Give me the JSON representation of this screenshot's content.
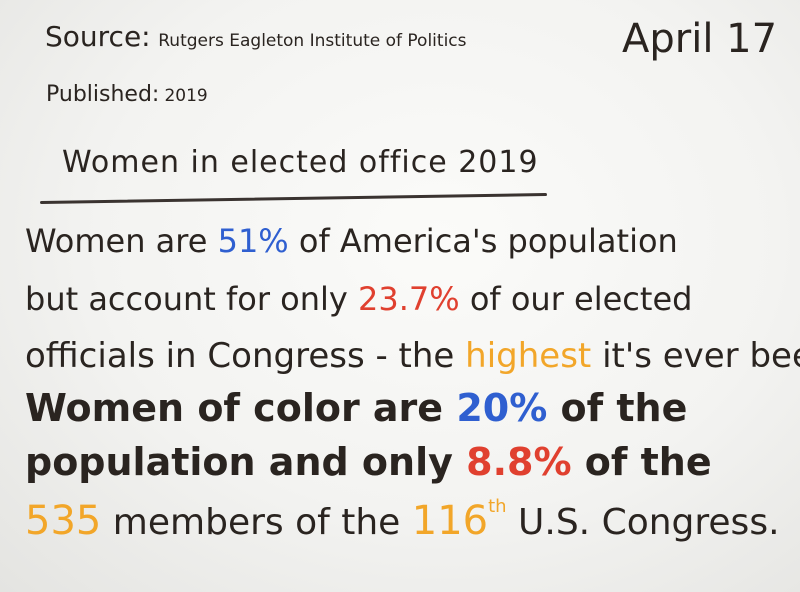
{
  "header": {
    "source_label": "Source:",
    "source_value": "Rutgers Eagleton Institute of Politics",
    "published_label": "Published:",
    "published_value": "2019",
    "date": "April 17"
  },
  "title": "Women in elected office 2019",
  "body": {
    "line1": {
      "a": "Women are ",
      "pct": "51%",
      "b": " of America's population"
    },
    "line2": {
      "a": "but account for only ",
      "pct": "23.7%",
      "b": " of our elected"
    },
    "line3": {
      "a": "officials in Congress - the ",
      "highlight": "highest",
      "b": " it's ever been."
    },
    "line4": {
      "a": "Women of color are ",
      "pct": "20%",
      "b": " of the"
    },
    "line5": {
      "a": "population and only ",
      "pct": "8.8%",
      "b": " of the"
    },
    "line6": {
      "num": "535",
      "a": " members of the ",
      "ordinal": "116",
      "ordinal_suffix": "th",
      "b": " U.S. Congress."
    }
  },
  "colors": {
    "ink": "#2a2420",
    "blue": "#2f5fd0",
    "red": "#e0402f",
    "orange": "#f2a629"
  }
}
